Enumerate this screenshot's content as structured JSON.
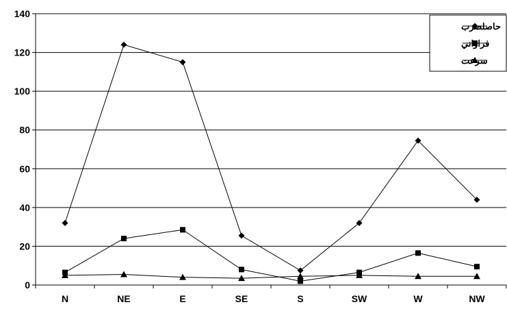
{
  "chart_data": {
    "type": "line",
    "title": "",
    "xlabel": "",
    "ylabel": "",
    "categories": [
      "N",
      "NE",
      "E",
      "SE",
      "S",
      "SW",
      "W",
      "NW"
    ],
    "ylim": [
      0,
      140
    ],
    "yticks": [
      0,
      20,
      40,
      60,
      80,
      100,
      120,
      140
    ],
    "grid": "horizontal",
    "legend_position": "top-right",
    "series": [
      {
        "name": "حاصلضرب",
        "marker": "diamond",
        "values": [
          32,
          124,
          115,
          25.5,
          7.5,
          32,
          74.5,
          44
        ]
      },
      {
        "name": "فراواني",
        "marker": "square",
        "values": [
          6.5,
          24,
          28.5,
          8,
          2,
          6.5,
          16.5,
          9.5
        ]
      },
      {
        "name": "سرعت",
        "marker": "triangle",
        "values": [
          5,
          5.5,
          4,
          3.5,
          4.5,
          5,
          4.5,
          4.5
        ]
      }
    ]
  }
}
